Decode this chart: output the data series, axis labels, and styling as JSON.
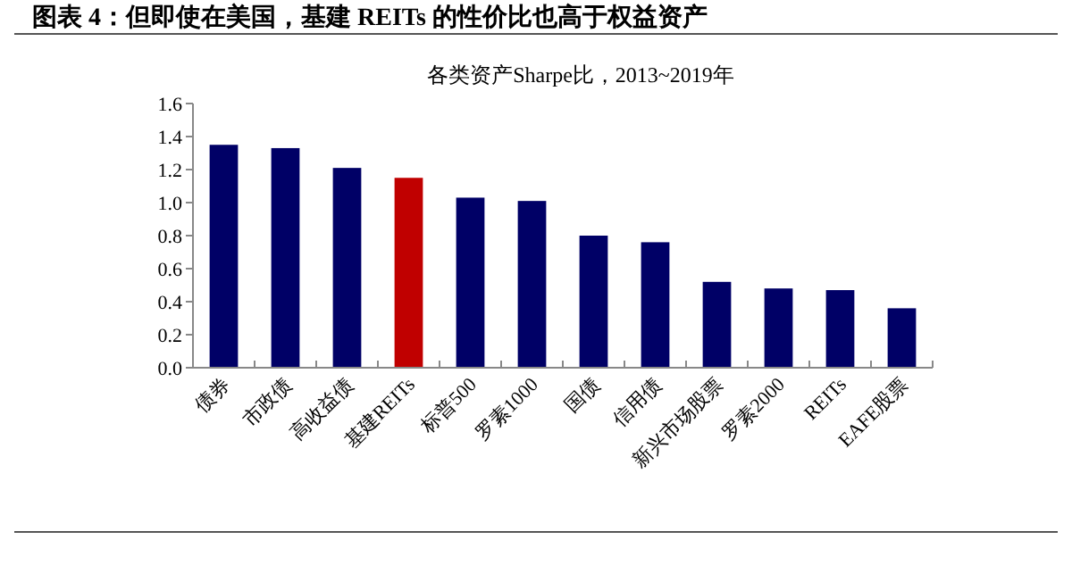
{
  "chart_data": {
    "type": "bar",
    "title": "图表 4：但即使在美国，基建 REITs 的性价比也高于权益资产",
    "subtitle": "各类资产Sharpe比，2013~2019年",
    "categories": [
      "债券",
      "市政债",
      "高收益债",
      "基建REITs",
      "标普500",
      "罗素1000",
      "国债",
      "信用债",
      "新兴市场股票",
      "罗素2000",
      "REITs",
      "EAFE股票"
    ],
    "values": [
      1.35,
      1.33,
      1.21,
      1.15,
      1.03,
      1.01,
      0.8,
      0.76,
      0.52,
      0.48,
      0.47,
      0.36
    ],
    "colors": [
      "#000066",
      "#000066",
      "#000066",
      "#c00000",
      "#000066",
      "#000066",
      "#000066",
      "#000066",
      "#000066",
      "#000066",
      "#000066",
      "#000066"
    ],
    "ylim": [
      0,
      1.6
    ],
    "yticks": [
      {
        "value": 0,
        "label": "0.0"
      },
      0.2,
      0.4,
      0.6,
      0.8,
      {
        "value": 1,
        "label": "1.0"
      },
      1.2,
      1.4,
      1.6
    ],
    "grid": false
  }
}
